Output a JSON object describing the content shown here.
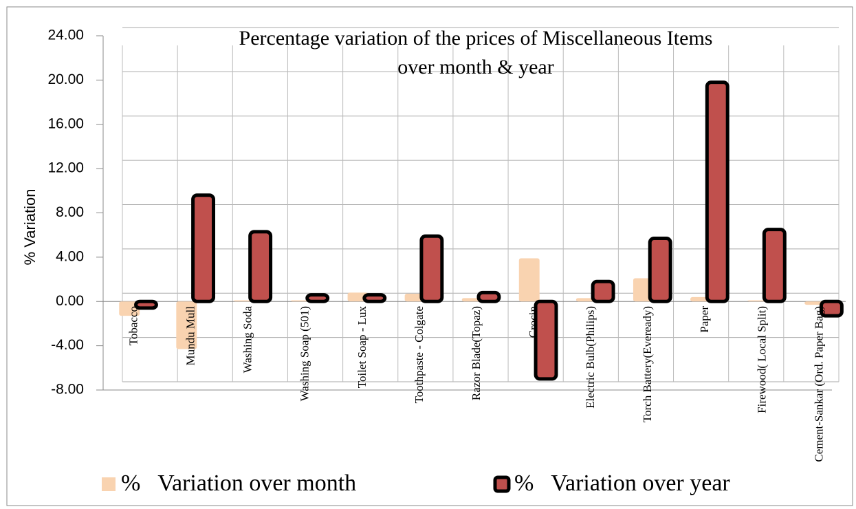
{
  "chart_data": {
    "type": "bar",
    "title": [
      "Percentage variation of the prices of Miscellaneous Items",
      "over month  & year"
    ],
    "y_label": "% Variation",
    "categories": [
      "Tobacco",
      "Mundu  Mull",
      "Washing  Soda",
      "Washing  Soap (501)",
      "Toilet Soap - Lux",
      "Toothpaste - Colgate",
      "Razor Blade(Topaz)",
      "Crocin",
      "Electric Bulb(Philips)",
      "Torch Battery(Eveready)",
      "Paper",
      "Firewood( Local Split)",
      "Cement-Sankar  (Ord. Paper Bag)"
    ],
    "series": [
      {
        "name": "%   Variation over month",
        "color": "#f9d3b0",
        "values": [
          -1.3,
          -4.3,
          0.1,
          0.1,
          0.8,
          0.7,
          0.3,
          3.9,
          0.3,
          2.1,
          0.4,
          0.1,
          -0.3
        ]
      },
      {
        "name": "%   Variation over year",
        "color": "#c0504d",
        "values": [
          -0.6,
          9.6,
          6.3,
          0.6,
          0.6,
          5.9,
          0.8,
          -7.0,
          1.8,
          5.7,
          19.8,
          6.5,
          -1.3
        ]
      }
    ],
    "ylim": [
      -8,
      24
    ],
    "yticks": [
      {
        "value": -8,
        "label": "-8.00"
      },
      {
        "value": -4,
        "label": "-4.00"
      },
      {
        "value": 0,
        "label": "0.00"
      },
      {
        "value": 4,
        "label": "4.00"
      },
      {
        "value": 8,
        "label": "8.00"
      },
      {
        "value": 12,
        "label": "12.00"
      },
      {
        "value": 16,
        "label": "16.00"
      },
      {
        "value": 20,
        "label": "20.00"
      },
      {
        "value": 24,
        "label": "24.00"
      }
    ],
    "grid": true
  }
}
